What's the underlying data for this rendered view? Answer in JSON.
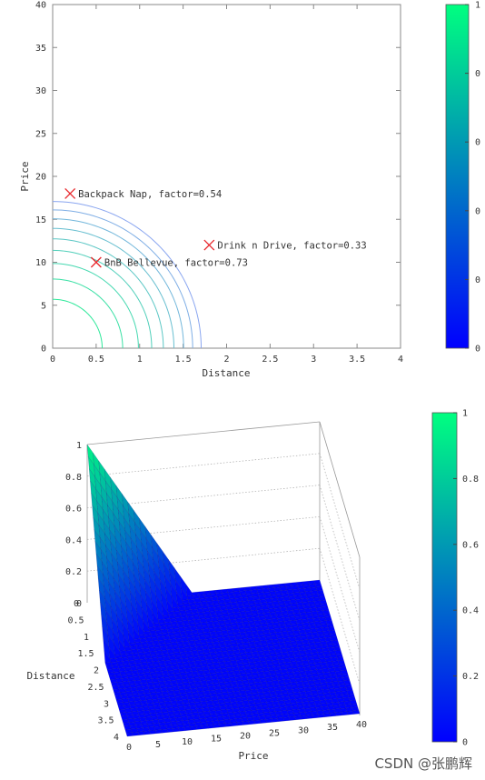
{
  "chart_data": [
    {
      "type": "contour",
      "xlabel": "Distance",
      "ylabel": "Price",
      "xlim": [
        0,
        4
      ],
      "ylim": [
        0,
        40
      ],
      "xticks": [
        0,
        0.5,
        1,
        1.5,
        2,
        2.5,
        3,
        3.5,
        4
      ],
      "yticks": [
        0,
        5,
        10,
        15,
        20,
        25,
        30,
        35,
        40
      ],
      "contour_levels": [
        0.1,
        0.2,
        0.3,
        0.4,
        0.5,
        0.6,
        0.7,
        0.8,
        0.9
      ],
      "points": [
        {
          "x": 0.2,
          "y": 18,
          "label": "Backpack Nap, factor=0.54"
        },
        {
          "x": 0.5,
          "y": 10,
          "label": "BnB Bellevue, factor=0.73"
        },
        {
          "x": 1.8,
          "y": 12,
          "label": "Drink n Drive, factor=0.33"
        }
      ],
      "marker_color": "#e8282d",
      "contour_color_low": "#8aa6f0",
      "contour_color_high": "#2ee89a",
      "colorbar": {
        "ticks": [
          "1",
          "0",
          "0",
          "0",
          "0",
          "0"
        ],
        "low_color": "#0000ff",
        "high_color": "#00ff80"
      }
    },
    {
      "type": "surface",
      "xlabel": "Price",
      "ylabel": "Distance",
      "xticks": [
        "0",
        "5",
        "10",
        "15",
        "20",
        "25",
        "30",
        "35",
        "40"
      ],
      "yticks": [
        "0",
        "0.5",
        "1",
        "1.5",
        "2",
        "2.5",
        "3",
        "3.5",
        "4"
      ],
      "zticks": [
        "0",
        "0.2",
        "0.4",
        "0.6",
        "0.8",
        "1"
      ],
      "zlim": [
        0,
        1
      ],
      "colorbar": {
        "ticks": [
          "1",
          "0.8",
          "0.6",
          "0.4",
          "0.2",
          "0"
        ],
        "low_color": "#0000ff",
        "high_color": "#00ff80"
      }
    }
  ],
  "watermark": "CSDN @张鹏辉"
}
